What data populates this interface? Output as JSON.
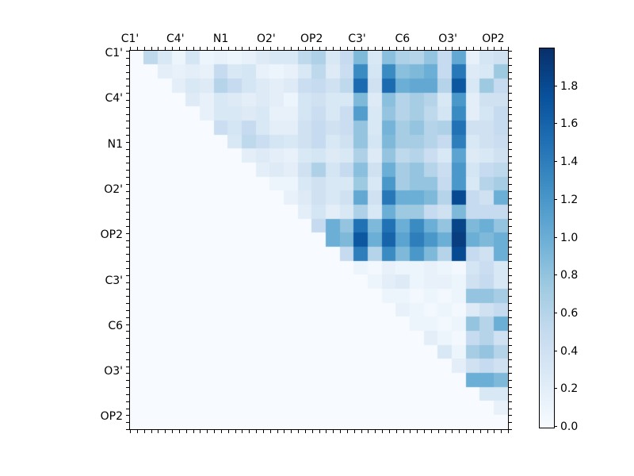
{
  "chart_data": {
    "type": "heatmap",
    "title": "",
    "xlabel": "",
    "ylabel": "",
    "x_tick_labels": [
      "C1'",
      "C4'",
      "N1",
      "O2'",
      "OP2",
      "C3'",
      "C6",
      "O3'",
      "OP2"
    ],
    "y_tick_labels": [
      "C1'",
      "C4'",
      "N1",
      "O2'",
      "OP2",
      "C3'",
      "C6",
      "O3'",
      "OP2"
    ],
    "vmin": 0.0,
    "vmax": 2.0,
    "colormap": "Blues",
    "colormap_anchors": [
      "#f7fbff",
      "#deebf7",
      "#c6dbef",
      "#9ecae1",
      "#6baed6",
      "#4292c6",
      "#2171b5",
      "#08519c",
      "#08306b"
    ],
    "colorbar_tick_labels": [
      "0.0",
      "0.2",
      "0.4",
      "0.6",
      "0.8",
      "1.0",
      "1.2",
      "1.4",
      "1.6",
      "1.8"
    ],
    "colorbar_tick_values": [
      0.0,
      0.2,
      0.4,
      0.6,
      0.8,
      1.0,
      1.2,
      1.4,
      1.6,
      1.8
    ],
    "legend": "none",
    "grid": false,
    "structure": "strictly upper-triangular matrix, diagonal and lower triangle are zero",
    "matrix": [
      [
        0,
        0.55,
        0.3,
        0.1,
        0.35,
        0.1,
        0.15,
        0.1,
        0.15,
        0.25,
        0.3,
        0.3,
        0.55,
        0.65,
        0.3,
        0.5,
        0.9,
        0.3,
        0.85,
        0.65,
        0.6,
        0.8,
        0.5,
        1.05,
        0.15,
        0.35,
        0.4
      ],
      [
        0,
        0,
        0.2,
        0.15,
        0.2,
        0.15,
        0.5,
        0.3,
        0.35,
        0.15,
        0.1,
        0.15,
        0.3,
        0.55,
        0.25,
        0.45,
        1.3,
        0.35,
        1.3,
        0.85,
        0.9,
        1.0,
        0.5,
        1.45,
        0.25,
        0.3,
        0.75
      ],
      [
        0,
        0,
        0,
        0.2,
        0.3,
        0.25,
        0.6,
        0.5,
        0.35,
        0.25,
        0.2,
        0.25,
        0.45,
        0.5,
        0.4,
        0.55,
        1.55,
        0.4,
        1.55,
        1.0,
        1.05,
        1.05,
        0.6,
        1.7,
        0.3,
        0.75,
        0.5
      ],
      [
        0,
        0,
        0,
        0,
        0.25,
        0.15,
        0.3,
        0.25,
        0.2,
        0.25,
        0.2,
        0.1,
        0.35,
        0.4,
        0.3,
        0.3,
        0.9,
        0.25,
        0.85,
        0.6,
        0.7,
        0.6,
        0.3,
        1.2,
        0.2,
        0.4,
        0.4
      ],
      [
        0,
        0,
        0,
        0,
        0,
        0.15,
        0.3,
        0.3,
        0.25,
        0.3,
        0.15,
        0.15,
        0.35,
        0.45,
        0.3,
        0.45,
        1.15,
        0.3,
        0.8,
        0.6,
        0.7,
        0.55,
        0.35,
        1.3,
        0.2,
        0.35,
        0.5
      ],
      [
        0,
        0,
        0,
        0,
        0,
        0,
        0.45,
        0.35,
        0.5,
        0.3,
        0.2,
        0.2,
        0.4,
        0.5,
        0.4,
        0.45,
        0.8,
        0.3,
        0.95,
        0.7,
        0.8,
        0.6,
        0.65,
        1.5,
        0.4,
        0.4,
        0.5
      ],
      [
        0,
        0,
        0,
        0,
        0,
        0,
        0,
        0.3,
        0.55,
        0.45,
        0.35,
        0.3,
        0.4,
        0.5,
        0.3,
        0.4,
        0.8,
        0.35,
        0.9,
        0.7,
        0.7,
        0.6,
        0.5,
        1.4,
        0.3,
        0.4,
        0.45
      ],
      [
        0,
        0,
        0,
        0,
        0,
        0,
        0,
        0,
        0.2,
        0.25,
        0.2,
        0.15,
        0.3,
        0.35,
        0.25,
        0.3,
        0.65,
        0.25,
        0.8,
        0.55,
        0.6,
        0.45,
        0.3,
        1.1,
        0.25,
        0.3,
        0.4
      ],
      [
        0,
        0,
        0,
        0,
        0,
        0,
        0,
        0,
        0,
        0.2,
        0.25,
        0.2,
        0.4,
        0.65,
        0.35,
        0.5,
        0.85,
        0.4,
        1.0,
        0.7,
        0.8,
        0.6,
        0.45,
        1.2,
        0.35,
        0.5,
        0.55
      ],
      [
        0,
        0,
        0,
        0,
        0,
        0,
        0,
        0,
        0,
        0,
        0.1,
        0.1,
        0.3,
        0.4,
        0.3,
        0.3,
        0.75,
        0.3,
        1.2,
        0.7,
        0.8,
        0.8,
        0.5,
        1.2,
        0.3,
        0.6,
        0.7
      ],
      [
        0,
        0,
        0,
        0,
        0,
        0,
        0,
        0,
        0,
        0,
        0,
        0.15,
        0.25,
        0.4,
        0.3,
        0.4,
        1.05,
        0.4,
        1.45,
        1.0,
        1.0,
        0.9,
        0.6,
        1.8,
        0.5,
        0.4,
        1.0
      ],
      [
        0,
        0,
        0,
        0,
        0,
        0,
        0,
        0,
        0,
        0,
        0,
        0,
        0.2,
        0.35,
        0.2,
        0.3,
        0.65,
        0.3,
        1.0,
        0.75,
        0.75,
        0.5,
        0.4,
        0.9,
        0.5,
        0.5,
        0.5
      ],
      [
        0,
        0,
        0,
        0,
        0,
        0,
        0,
        0,
        0,
        0,
        0,
        0,
        0,
        0.5,
        1.0,
        0.8,
        1.5,
        0.9,
        1.5,
        1.0,
        1.3,
        1.0,
        0.8,
        1.85,
        0.9,
        1.0,
        0.8
      ],
      [
        0,
        0,
        0,
        0,
        0,
        0,
        0,
        0,
        0,
        0,
        0,
        0,
        0,
        0,
        1.0,
        0.9,
        1.7,
        1.0,
        1.6,
        1.1,
        1.4,
        1.2,
        1.0,
        1.9,
        1.0,
        0.9,
        1.0
      ],
      [
        0,
        0,
        0,
        0,
        0,
        0,
        0,
        0,
        0,
        0,
        0,
        0,
        0,
        0,
        0,
        0.5,
        1.4,
        0.6,
        1.3,
        0.9,
        1.2,
        0.9,
        0.6,
        1.8,
        0.5,
        0.4,
        1.0
      ],
      [
        0,
        0,
        0,
        0,
        0,
        0,
        0,
        0,
        0,
        0,
        0,
        0,
        0,
        0,
        0,
        0,
        0.1,
        0.05,
        0.15,
        0.1,
        0.1,
        0.15,
        0.1,
        0.05,
        0.35,
        0.45,
        0.3
      ],
      [
        0,
        0,
        0,
        0,
        0,
        0,
        0,
        0,
        0,
        0,
        0,
        0,
        0,
        0,
        0,
        0,
        0,
        0.1,
        0.2,
        0.25,
        0.1,
        0.15,
        0.15,
        0.1,
        0.4,
        0.5,
        0.3
      ],
      [
        0,
        0,
        0,
        0,
        0,
        0,
        0,
        0,
        0,
        0,
        0,
        0,
        0,
        0,
        0,
        0,
        0,
        0,
        0.1,
        0.1,
        0.05,
        0.1,
        0.05,
        0.1,
        0.8,
        0.8,
        0.7
      ],
      [
        0,
        0,
        0,
        0,
        0,
        0,
        0,
        0,
        0,
        0,
        0,
        0,
        0,
        0,
        0,
        0,
        0,
        0,
        0,
        0.15,
        0.1,
        0.05,
        0.1,
        0.05,
        0.25,
        0.4,
        0.5
      ],
      [
        0,
        0,
        0,
        0,
        0,
        0,
        0,
        0,
        0,
        0,
        0,
        0,
        0,
        0,
        0,
        0,
        0,
        0,
        0,
        0,
        0.1,
        0.1,
        0.05,
        0.1,
        0.8,
        0.6,
        1.0
      ],
      [
        0,
        0,
        0,
        0,
        0,
        0,
        0,
        0,
        0,
        0,
        0,
        0,
        0,
        0,
        0,
        0,
        0,
        0,
        0,
        0,
        0,
        0.2,
        0.1,
        0.05,
        0.5,
        0.6,
        0.4
      ],
      [
        0,
        0,
        0,
        0,
        0,
        0,
        0,
        0,
        0,
        0,
        0,
        0,
        0,
        0,
        0,
        0,
        0,
        0,
        0,
        0,
        0,
        0,
        0.3,
        0.1,
        0.7,
        0.8,
        0.6
      ],
      [
        0,
        0,
        0,
        0,
        0,
        0,
        0,
        0,
        0,
        0,
        0,
        0,
        0,
        0,
        0,
        0,
        0,
        0,
        0,
        0,
        0,
        0,
        0,
        0.2,
        0.4,
        0.5,
        0.4
      ],
      [
        0,
        0,
        0,
        0,
        0,
        0,
        0,
        0,
        0,
        0,
        0,
        0,
        0,
        0,
        0,
        0,
        0,
        0,
        0,
        0,
        0,
        0,
        0,
        0,
        1.0,
        1.0,
        0.9
      ],
      [
        0,
        0,
        0,
        0,
        0,
        0,
        0,
        0,
        0,
        0,
        0,
        0,
        0,
        0,
        0,
        0,
        0,
        0,
        0,
        0,
        0,
        0,
        0,
        0,
        0,
        0.3,
        0.3
      ],
      [
        0,
        0,
        0,
        0,
        0,
        0,
        0,
        0,
        0,
        0,
        0,
        0,
        0,
        0,
        0,
        0,
        0,
        0,
        0,
        0,
        0,
        0,
        0,
        0,
        0,
        0,
        0.15
      ],
      [
        0,
        0,
        0,
        0,
        0,
        0,
        0,
        0,
        0,
        0,
        0,
        0,
        0,
        0,
        0,
        0,
        0,
        0,
        0,
        0,
        0,
        0,
        0,
        0,
        0,
        0,
        0
      ]
    ]
  }
}
